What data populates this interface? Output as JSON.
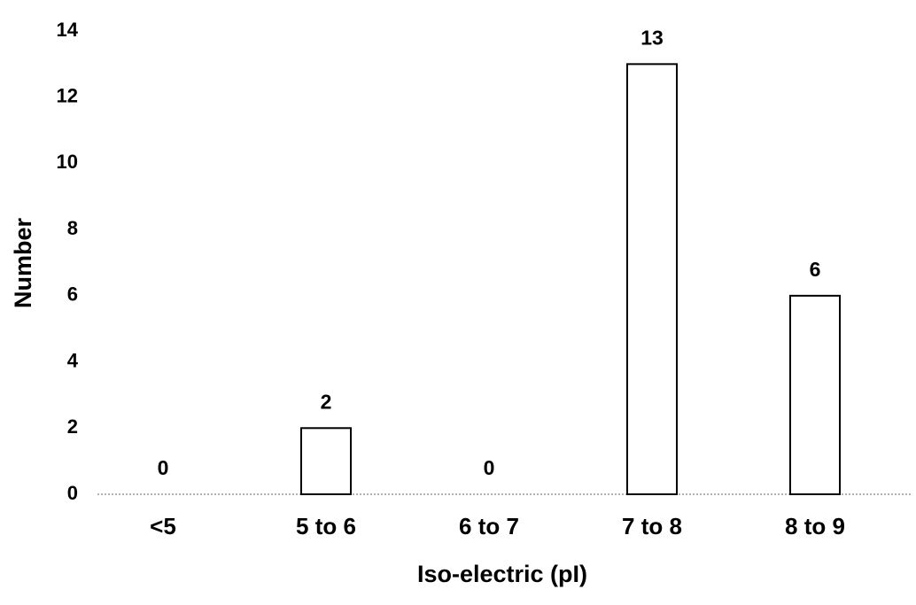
{
  "chart_data": {
    "type": "bar",
    "x_label": "Iso-electric (pI)",
    "y_label": "Number",
    "categories": [
      "<5",
      "5 to 6",
      "6 to 7",
      "7 to 8",
      "8 to 9"
    ],
    "values": [
      0,
      2,
      0,
      13,
      6
    ],
    "color": "#ffffff",
    "edge_color": "#000000",
    "ylim": [
      0,
      14
    ],
    "yticks": [
      0,
      2,
      4,
      6,
      8,
      10,
      12,
      14
    ],
    "grid": false
  }
}
